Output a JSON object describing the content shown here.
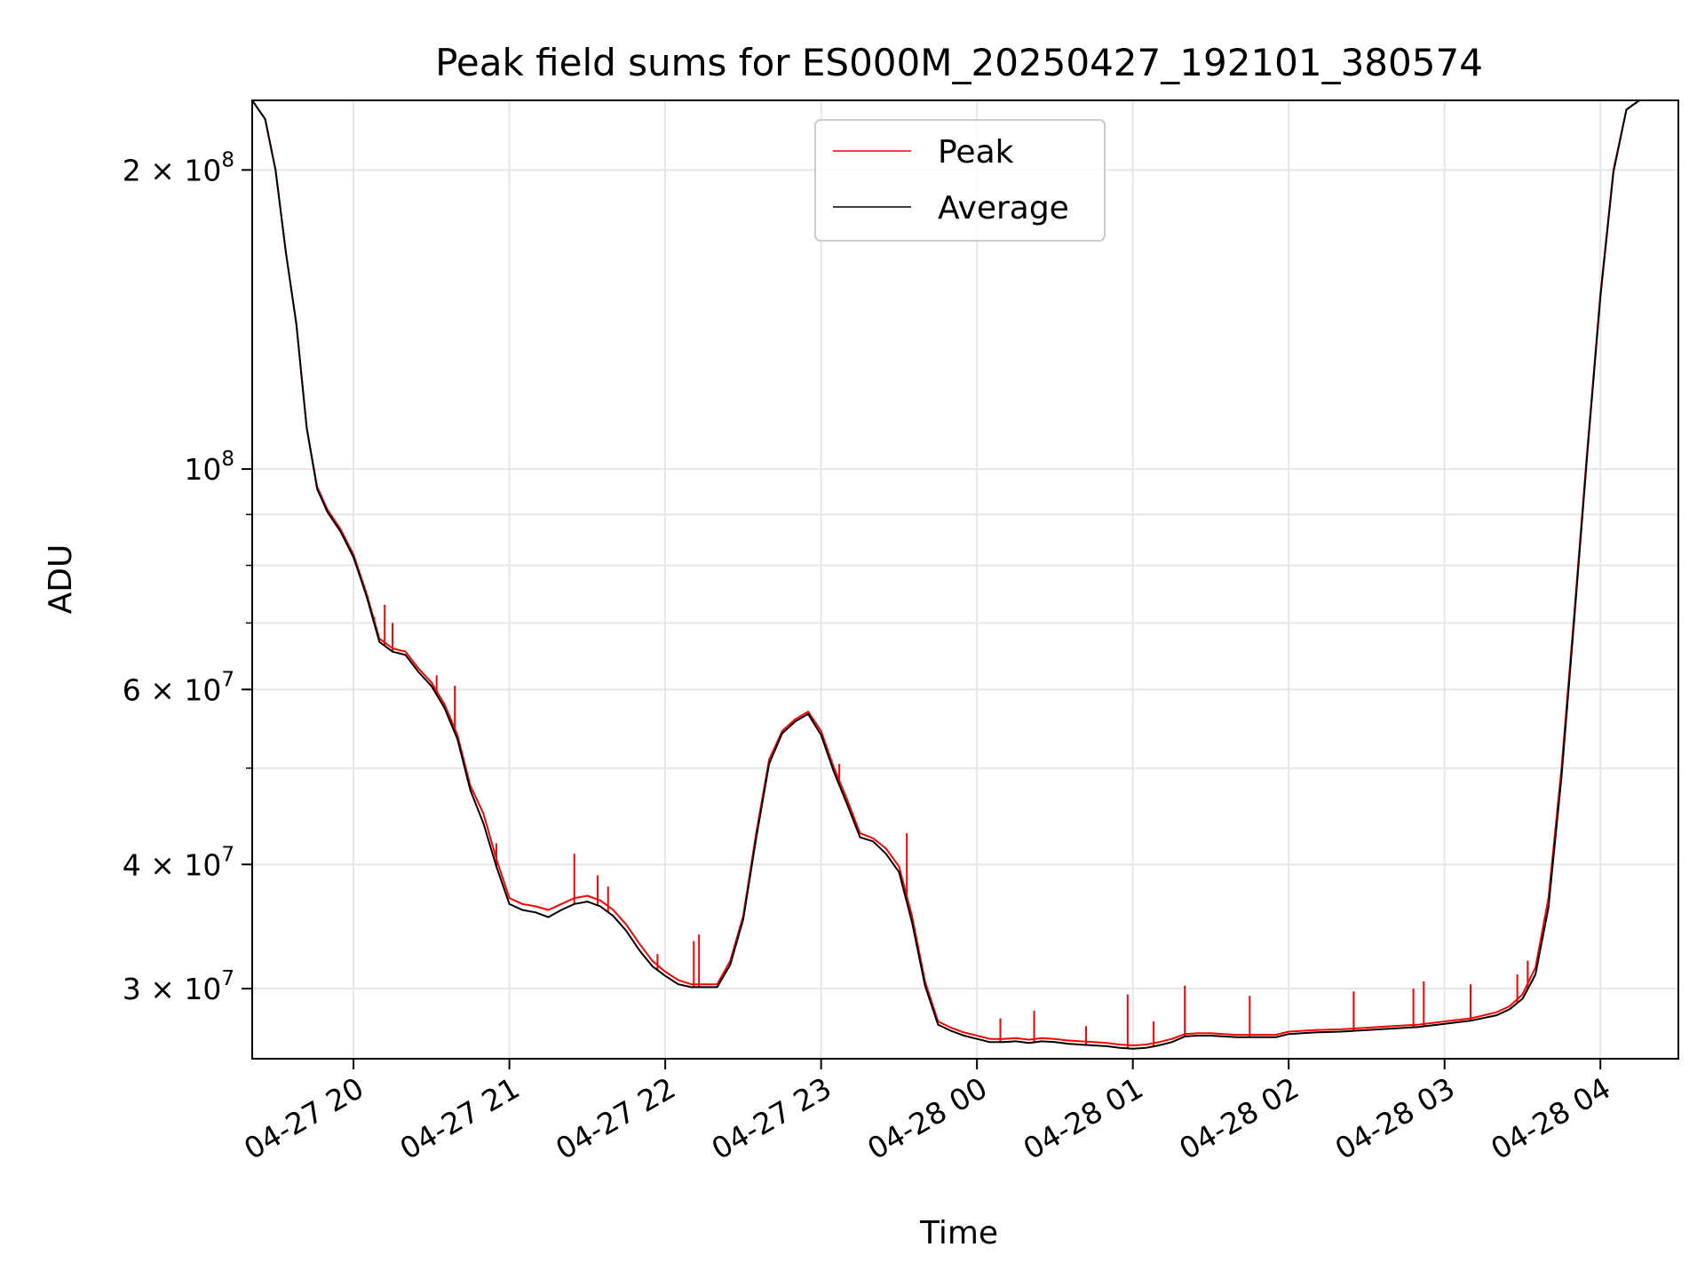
{
  "chart_data": {
    "type": "line",
    "title": "Peak field sums for ES000M_20250427_192101_380574",
    "xlabel": "Time",
    "ylabel": "ADU",
    "y_scale": "log",
    "ylim": [
      25500000,
      235000000
    ],
    "xlim": [
      "2025-04-27 19:21",
      "2025-04-28 04:30"
    ],
    "grid": true,
    "legend_placement": "top-center",
    "x_ticks": [
      {
        "t": "2025-04-27 20:00",
        "label": "04-27 20"
      },
      {
        "t": "2025-04-27 21:00",
        "label": "04-27 21"
      },
      {
        "t": "2025-04-27 22:00",
        "label": "04-27 22"
      },
      {
        "t": "2025-04-27 23:00",
        "label": "04-27 23"
      },
      {
        "t": "2025-04-28 00:00",
        "label": "04-28 00"
      },
      {
        "t": "2025-04-28 01:00",
        "label": "04-28 01"
      },
      {
        "t": "2025-04-28 02:00",
        "label": "04-28 02"
      },
      {
        "t": "2025-04-28 03:00",
        "label": "04-28 03"
      },
      {
        "t": "2025-04-28 04:00",
        "label": "04-28 04"
      }
    ],
    "y_ticks": [
      {
        "value": 30000000,
        "base": "3 × 10",
        "exp": "7"
      },
      {
        "value": 40000000,
        "base": "4 × 10",
        "exp": "7"
      },
      {
        "value": 60000000,
        "base": "6 × 10",
        "exp": "7"
      },
      {
        "value": 100000000,
        "base": "10",
        "exp": "8"
      },
      {
        "value": 200000000,
        "base": "2 × 10",
        "exp": "8"
      }
    ],
    "y_minor_ticks": [
      50000000,
      70000000,
      80000000,
      90000000
    ],
    "series": [
      {
        "name": "Peak",
        "color": "#ff0000",
        "points": [
          [
            "2025-04-27 19:21",
            235000000
          ],
          [
            "2025-04-27 19:26",
            225000000
          ],
          [
            "2025-04-27 19:30",
            200000000
          ],
          [
            "2025-04-27 19:34",
            165000000
          ],
          [
            "2025-04-27 19:38",
            140000000
          ],
          [
            "2025-04-27 19:42",
            110000000
          ],
          [
            "2025-04-27 19:46",
            96000000
          ],
          [
            "2025-04-27 19:50",
            91000000
          ],
          [
            "2025-04-27 19:55",
            87000000
          ],
          [
            "2025-04-27 20:00",
            82000000
          ],
          [
            "2025-04-27 20:05",
            75000000
          ],
          [
            "2025-04-27 20:10",
            67500000
          ],
          [
            "2025-04-27 20:15",
            66000000
          ],
          [
            "2025-04-27 20:20",
            65500000
          ],
          [
            "2025-04-27 20:25",
            63000000
          ],
          [
            "2025-04-27 20:30",
            61000000
          ],
          [
            "2025-04-27 20:35",
            58000000
          ],
          [
            "2025-04-27 20:40",
            54000000
          ],
          [
            "2025-04-27 20:45",
            48000000
          ],
          [
            "2025-04-27 20:50",
            45000000
          ],
          [
            "2025-04-27 20:55",
            40500000
          ],
          [
            "2025-04-27 21:00",
            37000000
          ],
          [
            "2025-04-27 21:05",
            36500000
          ],
          [
            "2025-04-27 21:10",
            36300000
          ],
          [
            "2025-04-27 21:15",
            36000000
          ],
          [
            "2025-04-27 21:20",
            36500000
          ],
          [
            "2025-04-27 21:25",
            37000000
          ],
          [
            "2025-04-27 21:30",
            37200000
          ],
          [
            "2025-04-27 21:35",
            36800000
          ],
          [
            "2025-04-27 21:40",
            36000000
          ],
          [
            "2025-04-27 21:45",
            34800000
          ],
          [
            "2025-04-27 21:50",
            33300000
          ],
          [
            "2025-04-27 21:55",
            32000000
          ],
          [
            "2025-04-27 22:00",
            31200000
          ],
          [
            "2025-04-27 22:05",
            30600000
          ],
          [
            "2025-04-27 22:10",
            30300000
          ],
          [
            "2025-04-27 22:15",
            30300000
          ],
          [
            "2025-04-27 22:20",
            30300000
          ],
          [
            "2025-04-27 22:25",
            32000000
          ],
          [
            "2025-04-27 22:30",
            35500000
          ],
          [
            "2025-04-27 22:35",
            43000000
          ],
          [
            "2025-04-27 22:40",
            51000000
          ],
          [
            "2025-04-27 22:45",
            54500000
          ],
          [
            "2025-04-27 22:50",
            56000000
          ],
          [
            "2025-04-27 22:55",
            57000000
          ],
          [
            "2025-04-27 23:00",
            54500000
          ],
          [
            "2025-04-27 23:05",
            50000000
          ],
          [
            "2025-04-27 23:10",
            46500000
          ],
          [
            "2025-04-27 23:15",
            43000000
          ],
          [
            "2025-04-27 23:20",
            42500000
          ],
          [
            "2025-04-27 23:25",
            41500000
          ],
          [
            "2025-04-27 23:30",
            39800000
          ],
          [
            "2025-04-27 23:35",
            35500000
          ],
          [
            "2025-04-27 23:40",
            30500000
          ],
          [
            "2025-04-27 23:45",
            27800000
          ],
          [
            "2025-04-27 23:50",
            27400000
          ],
          [
            "2025-04-27 23:55",
            27100000
          ],
          [
            "2025-04-28 00:00",
            26900000
          ],
          [
            "2025-04-28 00:05",
            26700000
          ],
          [
            "2025-04-28 00:10",
            26700000
          ],
          [
            "2025-04-28 00:15",
            26750000
          ],
          [
            "2025-04-28 00:20",
            26650000
          ],
          [
            "2025-04-28 00:25",
            26750000
          ],
          [
            "2025-04-28 00:30",
            26700000
          ],
          [
            "2025-04-28 00:35",
            26600000
          ],
          [
            "2025-04-28 00:40",
            26550000
          ],
          [
            "2025-04-28 00:45",
            26500000
          ],
          [
            "2025-04-28 00:50",
            26450000
          ],
          [
            "2025-04-28 00:55",
            26350000
          ],
          [
            "2025-04-28 01:00",
            26300000
          ],
          [
            "2025-04-28 01:05",
            26350000
          ],
          [
            "2025-04-28 01:10",
            26500000
          ],
          [
            "2025-04-28 01:15",
            26700000
          ],
          [
            "2025-04-28 01:20",
            27000000
          ],
          [
            "2025-04-28 01:25",
            27050000
          ],
          [
            "2025-04-28 01:30",
            27050000
          ],
          [
            "2025-04-28 01:35",
            27000000
          ],
          [
            "2025-04-28 01:40",
            26950000
          ],
          [
            "2025-04-28 01:45",
            26950000
          ],
          [
            "2025-04-28 01:50",
            26950000
          ],
          [
            "2025-04-28 01:55",
            26950000
          ],
          [
            "2025-04-28 02:00",
            27150000
          ],
          [
            "2025-04-28 02:10",
            27250000
          ],
          [
            "2025-04-28 02:20",
            27300000
          ],
          [
            "2025-04-28 02:30",
            27400000
          ],
          [
            "2025-04-28 02:40",
            27500000
          ],
          [
            "2025-04-28 02:50",
            27600000
          ],
          [
            "2025-04-28 03:00",
            27800000
          ],
          [
            "2025-04-28 03:10",
            28000000
          ],
          [
            "2025-04-28 03:20",
            28400000
          ],
          [
            "2025-04-28 03:25",
            28800000
          ],
          [
            "2025-04-28 03:30",
            29600000
          ],
          [
            "2025-04-28 03:35",
            31500000
          ],
          [
            "2025-04-28 03:40",
            37000000
          ],
          [
            "2025-04-28 03:45",
            50000000
          ],
          [
            "2025-04-28 03:50",
            72000000
          ],
          [
            "2025-04-28 03:55",
            105000000
          ],
          [
            "2025-04-28 04:00",
            150000000
          ],
          [
            "2025-04-28 04:05",
            200000000
          ],
          [
            "2025-04-28 04:10",
            230000000
          ],
          [
            "2025-04-28 04:15",
            235000000
          ],
          [
            "2025-04-28 04:30",
            235000000
          ]
        ],
        "spikes": [
          [
            "2025-04-27 20:08",
            71000000
          ],
          [
            "2025-04-27 20:12",
            73000000
          ],
          [
            "2025-04-27 20:15",
            70000000
          ],
          [
            "2025-04-27 20:32",
            62000000
          ],
          [
            "2025-04-27 20:39",
            60500000
          ],
          [
            "2025-04-27 20:55",
            42000000
          ],
          [
            "2025-04-27 21:25",
            41000000
          ],
          [
            "2025-04-27 21:34",
            39000000
          ],
          [
            "2025-04-27 21:38",
            38000000
          ],
          [
            "2025-04-27 21:57",
            32500000
          ],
          [
            "2025-04-27 22:11",
            33500000
          ],
          [
            "2025-04-27 22:13",
            34000000
          ],
          [
            "2025-04-27 23:07",
            50500000
          ],
          [
            "2025-04-27 23:33",
            43000000
          ],
          [
            "2025-04-28 00:09",
            28000000
          ],
          [
            "2025-04-28 00:22",
            28500000
          ],
          [
            "2025-04-28 00:42",
            27500000
          ],
          [
            "2025-04-28 00:58",
            29600000
          ],
          [
            "2025-04-28 01:08",
            27800000
          ],
          [
            "2025-04-28 01:20",
            30200000
          ],
          [
            "2025-04-28 01:45",
            29500000
          ],
          [
            "2025-04-28 02:25",
            29800000
          ],
          [
            "2025-04-28 02:48",
            30000000
          ],
          [
            "2025-04-28 02:52",
            30500000
          ],
          [
            "2025-04-28 03:10",
            30300000
          ],
          [
            "2025-04-28 03:28",
            31000000
          ],
          [
            "2025-04-28 03:32",
            32000000
          ]
        ]
      },
      {
        "name": "Average",
        "color": "#000000",
        "points": [
          [
            "2025-04-27 19:21",
            235000000
          ],
          [
            "2025-04-27 19:26",
            225000000
          ],
          [
            "2025-04-27 19:30",
            200000000
          ],
          [
            "2025-04-27 19:34",
            165000000
          ],
          [
            "2025-04-27 19:38",
            140000000
          ],
          [
            "2025-04-27 19:42",
            110000000
          ],
          [
            "2025-04-27 19:46",
            95500000
          ],
          [
            "2025-04-27 19:50",
            90500000
          ],
          [
            "2025-04-27 19:55",
            86500000
          ],
          [
            "2025-04-27 20:00",
            81500000
          ],
          [
            "2025-04-27 20:05",
            74500000
          ],
          [
            "2025-04-27 20:10",
            67000000
          ],
          [
            "2025-04-27 20:15",
            65500000
          ],
          [
            "2025-04-27 20:20",
            65000000
          ],
          [
            "2025-04-27 20:25",
            62500000
          ],
          [
            "2025-04-27 20:30",
            60500000
          ],
          [
            "2025-04-27 20:35",
            57500000
          ],
          [
            "2025-04-27 20:40",
            53500000
          ],
          [
            "2025-04-27 20:45",
            47500000
          ],
          [
            "2025-04-27 20:50",
            44000000
          ],
          [
            "2025-04-27 20:55",
            39800000
          ],
          [
            "2025-04-27 21:00",
            36500000
          ],
          [
            "2025-04-27 21:05",
            36000000
          ],
          [
            "2025-04-27 21:10",
            35800000
          ],
          [
            "2025-04-27 21:15",
            35400000
          ],
          [
            "2025-04-27 21:20",
            36000000
          ],
          [
            "2025-04-27 21:25",
            36500000
          ],
          [
            "2025-04-27 21:30",
            36700000
          ],
          [
            "2025-04-27 21:35",
            36300000
          ],
          [
            "2025-04-27 21:40",
            35500000
          ],
          [
            "2025-04-27 21:45",
            34300000
          ],
          [
            "2025-04-27 21:50",
            32800000
          ],
          [
            "2025-04-27 21:55",
            31600000
          ],
          [
            "2025-04-27 22:00",
            30900000
          ],
          [
            "2025-04-27 22:05",
            30300000
          ],
          [
            "2025-04-27 22:10",
            30100000
          ],
          [
            "2025-04-27 22:15",
            30100000
          ],
          [
            "2025-04-27 22:20",
            30100000
          ],
          [
            "2025-04-27 22:25",
            31700000
          ],
          [
            "2025-04-27 22:30",
            35200000
          ],
          [
            "2025-04-27 22:35",
            42500000
          ],
          [
            "2025-04-27 22:40",
            50500000
          ],
          [
            "2025-04-27 22:45",
            54200000
          ],
          [
            "2025-04-27 22:50",
            55700000
          ],
          [
            "2025-04-27 22:55",
            56700000
          ],
          [
            "2025-04-27 23:00",
            54000000
          ],
          [
            "2025-04-27 23:05",
            49500000
          ],
          [
            "2025-04-27 23:10",
            46000000
          ],
          [
            "2025-04-27 23:15",
            42600000
          ],
          [
            "2025-04-27 23:20",
            42200000
          ],
          [
            "2025-04-27 23:25",
            41000000
          ],
          [
            "2025-04-27 23:30",
            39300000
          ],
          [
            "2025-04-27 23:35",
            35000000
          ],
          [
            "2025-04-27 23:40",
            30200000
          ],
          [
            "2025-04-27 23:45",
            27600000
          ],
          [
            "2025-04-27 23:50",
            27200000
          ],
          [
            "2025-04-27 23:55",
            26900000
          ],
          [
            "2025-04-28 00:00",
            26700000
          ],
          [
            "2025-04-28 00:05",
            26500000
          ],
          [
            "2025-04-28 00:10",
            26500000
          ],
          [
            "2025-04-28 00:15",
            26550000
          ],
          [
            "2025-04-28 00:20",
            26450000
          ],
          [
            "2025-04-28 00:25",
            26550000
          ],
          [
            "2025-04-28 00:30",
            26500000
          ],
          [
            "2025-04-28 00:35",
            26400000
          ],
          [
            "2025-04-28 00:40",
            26350000
          ],
          [
            "2025-04-28 00:45",
            26300000
          ],
          [
            "2025-04-28 00:50",
            26250000
          ],
          [
            "2025-04-28 00:55",
            26150000
          ],
          [
            "2025-04-28 01:00",
            26100000
          ],
          [
            "2025-04-28 01:05",
            26150000
          ],
          [
            "2025-04-28 01:10",
            26300000
          ],
          [
            "2025-04-28 01:15",
            26500000
          ],
          [
            "2025-04-28 01:20",
            26850000
          ],
          [
            "2025-04-28 01:25",
            26900000
          ],
          [
            "2025-04-28 01:30",
            26900000
          ],
          [
            "2025-04-28 01:35",
            26850000
          ],
          [
            "2025-04-28 01:40",
            26800000
          ],
          [
            "2025-04-28 01:45",
            26800000
          ],
          [
            "2025-04-28 01:50",
            26800000
          ],
          [
            "2025-04-28 01:55",
            26800000
          ],
          [
            "2025-04-28 02:00",
            27000000
          ],
          [
            "2025-04-28 02:10",
            27100000
          ],
          [
            "2025-04-28 02:20",
            27150000
          ],
          [
            "2025-04-28 02:30",
            27250000
          ],
          [
            "2025-04-28 02:40",
            27350000
          ],
          [
            "2025-04-28 02:50",
            27450000
          ],
          [
            "2025-04-28 03:00",
            27650000
          ],
          [
            "2025-04-28 03:10",
            27850000
          ],
          [
            "2025-04-28 03:20",
            28200000
          ],
          [
            "2025-04-28 03:25",
            28600000
          ],
          [
            "2025-04-28 03:30",
            29300000
          ],
          [
            "2025-04-28 03:35",
            31000000
          ],
          [
            "2025-04-28 03:40",
            36200000
          ],
          [
            "2025-04-28 03:45",
            49000000
          ],
          [
            "2025-04-28 03:50",
            71000000
          ],
          [
            "2025-04-28 03:55",
            104000000
          ],
          [
            "2025-04-28 04:00",
            149000000
          ],
          [
            "2025-04-28 04:05",
            199000000
          ],
          [
            "2025-04-28 04:10",
            230000000
          ],
          [
            "2025-04-28 04:15",
            235000000
          ],
          [
            "2025-04-28 04:30",
            235000000
          ]
        ]
      }
    ]
  }
}
